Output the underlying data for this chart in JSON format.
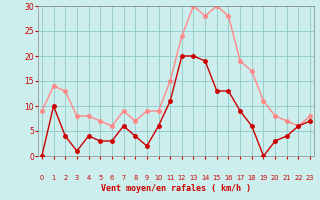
{
  "hours": [
    0,
    1,
    2,
    3,
    4,
    5,
    6,
    7,
    8,
    9,
    10,
    11,
    12,
    13,
    14,
    15,
    16,
    17,
    18,
    19,
    20,
    21,
    22,
    23
  ],
  "wind_mean": [
    0,
    10,
    4,
    1,
    4,
    3,
    3,
    6,
    4,
    2,
    6,
    11,
    20,
    20,
    19,
    13,
    13,
    9,
    6,
    0,
    3,
    4,
    6,
    7
  ],
  "wind_gust": [
    9,
    14,
    13,
    8,
    8,
    7,
    6,
    9,
    7,
    9,
    9,
    15,
    24,
    30,
    28,
    30,
    28,
    19,
    17,
    11,
    8,
    7,
    6,
    8
  ],
  "bg_color": "#cceeed",
  "grid_color": "#99cccc",
  "mean_color": "#cc0000",
  "gust_color": "#ff8888",
  "xlabel": "Vent moyen/en rafales ( km/h )",
  "xlabel_color": "#cc0000",
  "tick_color": "#cc0000",
  "spine_color": "#888888",
  "ylim": [
    0,
    30
  ],
  "yticks": [
    0,
    5,
    10,
    15,
    20,
    25,
    30
  ],
  "marker_size": 2.5,
  "line_width": 1.0
}
